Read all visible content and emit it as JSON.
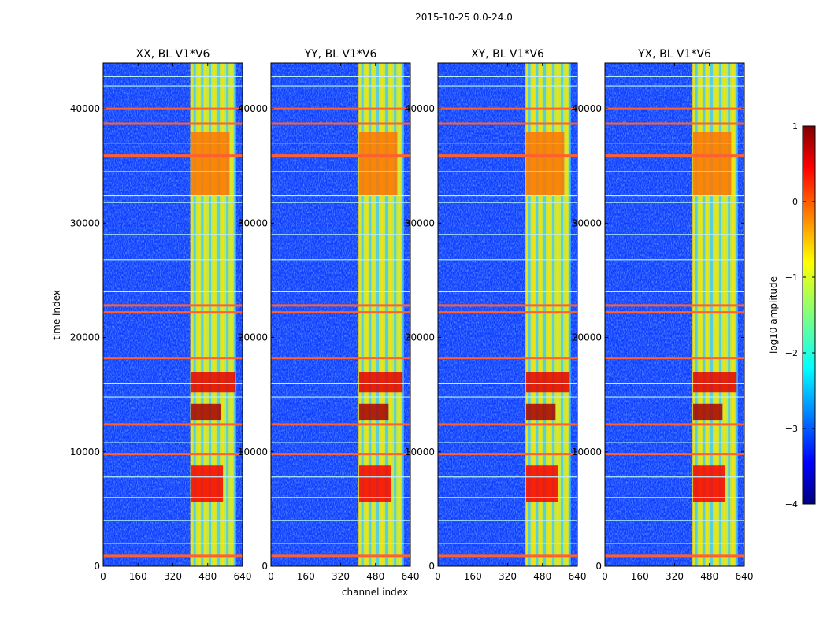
{
  "chart_data": {
    "type": "heatmap",
    "suptitle": "2015-10-25 0.0-24.0",
    "xlabel": "channel index",
    "ylabel": "time index",
    "xlim": [
      0,
      640
    ],
    "ylim": [
      0,
      44000
    ],
    "xticks": [
      0,
      160,
      320,
      480,
      640
    ],
    "yticks": [
      0,
      10000,
      20000,
      30000,
      40000
    ],
    "panels": [
      {
        "title": "XX, BL V1*V6"
      },
      {
        "title": "YY, BL V1*V6"
      },
      {
        "title": "XY, BL V1*V6"
      },
      {
        "title": "YX, BL V1*V6"
      }
    ],
    "colorbar": {
      "label": "log10 amplitude",
      "range": [
        -4,
        1
      ],
      "ticks": [
        "1",
        "0",
        "−1",
        "−2",
        "−3",
        "−4"
      ],
      "colormap": "jet"
    },
    "bright_channel_band": [
      405,
      605
    ],
    "bright_channel_columns": [
      405,
      420,
      440,
      455,
      470,
      490,
      510,
      530,
      550,
      570,
      590,
      605
    ],
    "rfi_rows_strong": [
      900,
      9800,
      12400,
      18200,
      22200,
      22800,
      35900,
      38700,
      40000
    ],
    "rfi_rows_weak": [
      2000,
      4000,
      6000,
      7800,
      10800,
      14800,
      16000,
      24000,
      26800,
      29000,
      31800,
      32400,
      34500,
      37000,
      42000,
      42800
    ],
    "hot_spots": [
      {
        "channel": 460,
        "time_from": 12800,
        "time_to": 14200,
        "value": 0.8
      },
      {
        "channel": 530,
        "time_from": 15200,
        "time_to": 17000,
        "value": 0.5
      },
      {
        "channel": 470,
        "time_from": 5600,
        "time_to": 8800,
        "value": 0.4
      },
      {
        "channel": 500,
        "time_from": 32500,
        "time_to": 38000,
        "value": -0.2
      }
    ]
  },
  "colors": {
    "background_low": "#1040ff",
    "background_mid": "#40a0ff",
    "band_fill": "#c8f040",
    "hot": "#ff4000",
    "rfi_line": "#ff6030"
  }
}
